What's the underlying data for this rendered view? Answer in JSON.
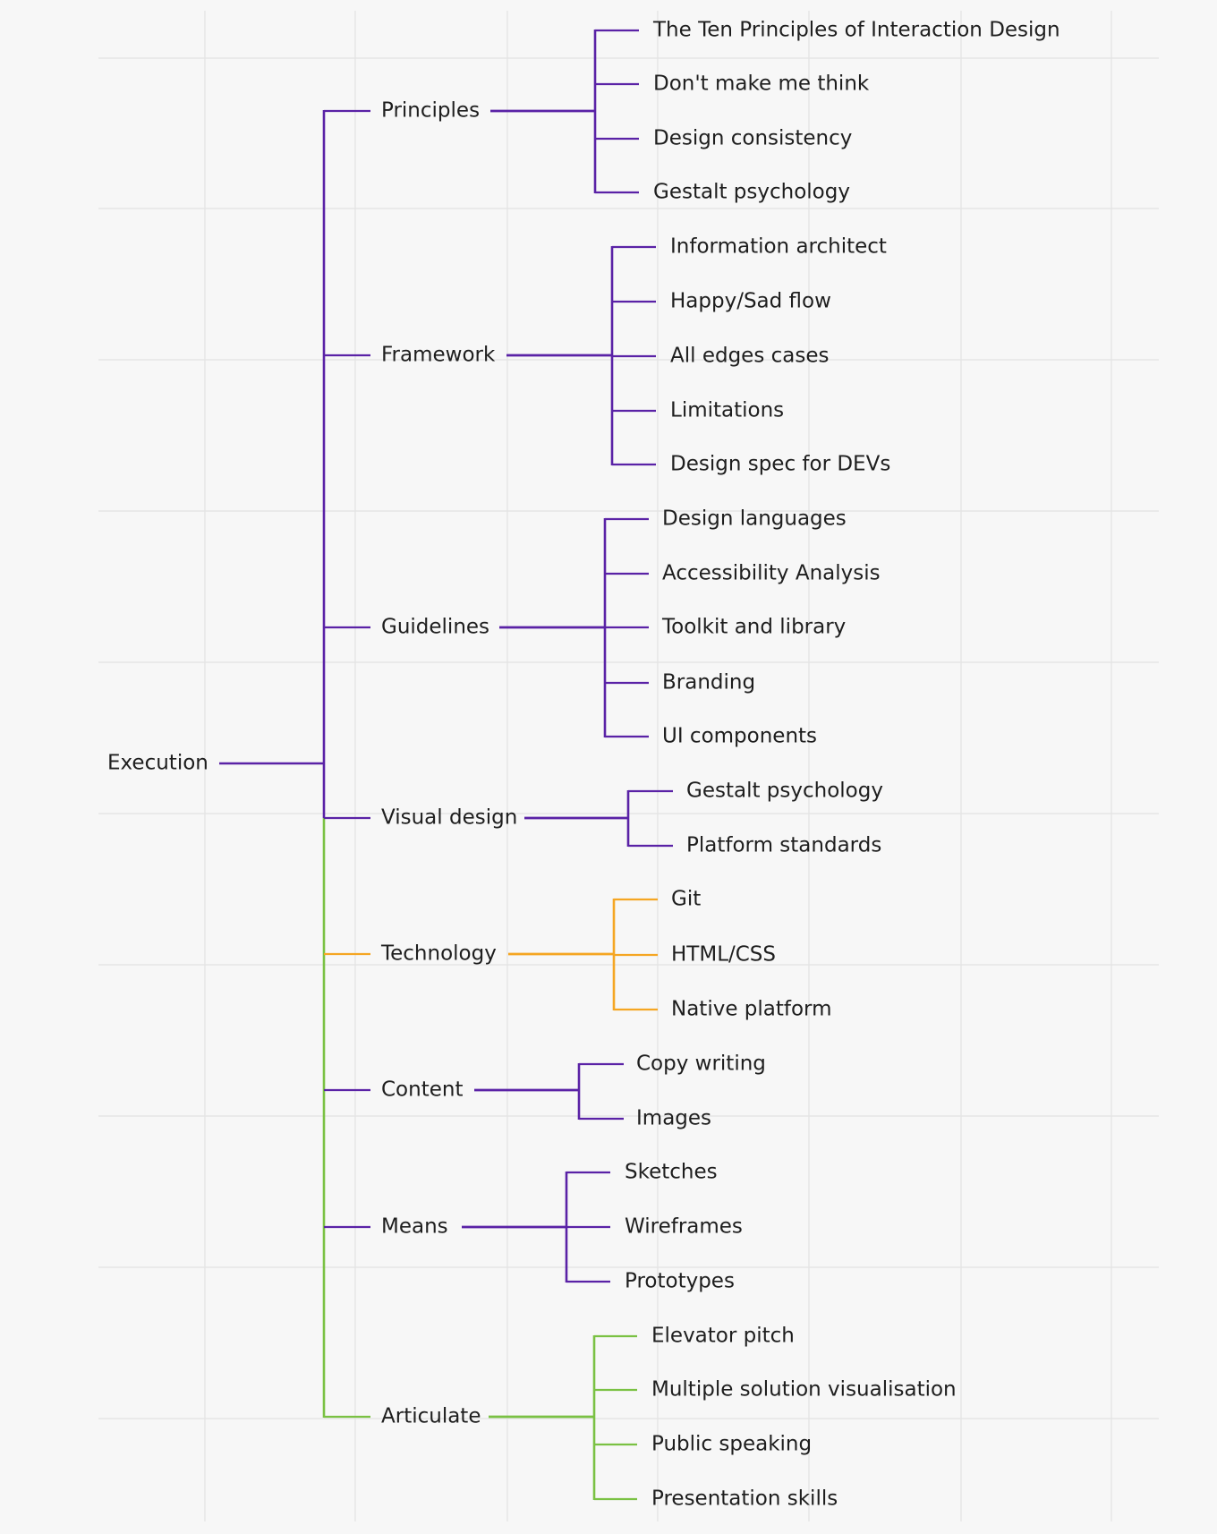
{
  "colors": {
    "background": "#f7f7f7",
    "grid": "#e3e3e3",
    "text": "#1e1e1e",
    "purple": "#5a22a6",
    "orange": "#f5a623",
    "green": "#7ac143"
  },
  "tree": {
    "label": "Execution",
    "children": [
      {
        "label": "Principles",
        "color": "purple",
        "children": [
          "The Ten Principles of Interaction Design",
          "Don't make me think",
          "Design consistency",
          "Gestalt psychology"
        ]
      },
      {
        "label": "Framework",
        "color": "purple",
        "children": [
          "Information architect",
          "Happy/Sad flow",
          "All edges cases",
          "Limitations",
          "Design spec for DEVs"
        ]
      },
      {
        "label": "Guidelines",
        "color": "purple",
        "children": [
          "Design languages",
          "Accessibility Analysis",
          "Toolkit and library",
          "Branding",
          "UI components"
        ]
      },
      {
        "label": "Visual design",
        "color": "purple",
        "children": [
          "Gestalt psychology",
          "Platform standards"
        ]
      },
      {
        "label": "Technology",
        "color": "orange",
        "children": [
          "Git",
          "HTML/CSS",
          "Native platform"
        ]
      },
      {
        "label": "Content",
        "color": "purple",
        "children": [
          "Copy writing",
          "Images"
        ]
      },
      {
        "label": "Means",
        "color": "purple",
        "children": [
          "Sketches",
          "Wireframes",
          "Prototypes"
        ]
      },
      {
        "label": "Articulate",
        "color": "green",
        "children": [
          "Elevator pitch",
          "Multiple solution visualisation",
          "Public speaking",
          "Presentation skills"
        ]
      }
    ]
  }
}
